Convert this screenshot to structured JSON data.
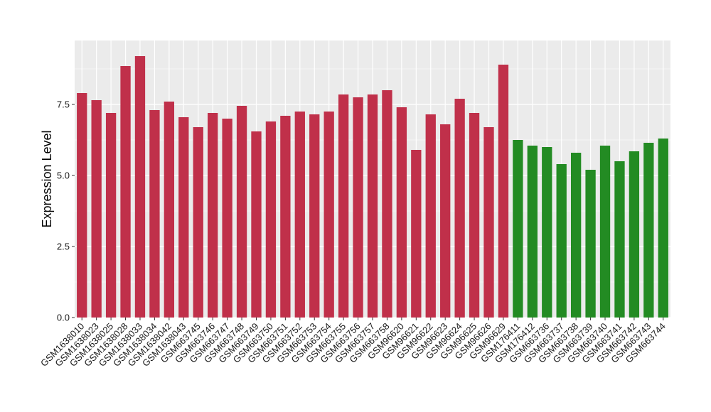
{
  "chart_data": {
    "type": "bar",
    "title": "",
    "xlabel": "",
    "ylabel": "Expression Level",
    "ylim": [
      0,
      9.75
    ],
    "yticks": [
      0.0,
      2.5,
      5.0,
      7.5
    ],
    "ytick_labels": [
      "0.0",
      "2.5",
      "5.0",
      "7.5"
    ],
    "grid": true,
    "colors": {
      "group1": "#c0304a",
      "group2": "#238b23",
      "panel": "#ebebeb",
      "grid": "#ffffff"
    },
    "categories": [
      "GSM1638010",
      "GSM1638023",
      "GSM1638025",
      "GSM1638028",
      "GSM1638033",
      "GSM1638034",
      "GSM1638042",
      "GSM1638043",
      "GSM663745",
      "GSM663746",
      "GSM663747",
      "GSM663748",
      "GSM663749",
      "GSM663750",
      "GSM663751",
      "GSM663752",
      "GSM663753",
      "GSM663754",
      "GSM663755",
      "GSM663756",
      "GSM663757",
      "GSM663758",
      "GSM96620",
      "GSM96621",
      "GSM96622",
      "GSM96623",
      "GSM96624",
      "GSM96625",
      "GSM96626",
      "GSM96629",
      "GSM176411",
      "GSM176412",
      "GSM663736",
      "GSM663737",
      "GSM663738",
      "GSM663739",
      "GSM663740",
      "GSM663741",
      "GSM663742",
      "GSM663743",
      "GSM663744"
    ],
    "values": [
      7.9,
      7.65,
      7.2,
      8.85,
      9.2,
      7.3,
      7.6,
      7.05,
      6.7,
      7.2,
      7.0,
      7.45,
      6.55,
      6.9,
      7.1,
      7.25,
      7.15,
      7.25,
      7.85,
      7.75,
      7.85,
      8.0,
      7.4,
      5.9,
      7.15,
      6.8,
      7.7,
      7.2,
      6.7,
      8.9,
      6.25,
      6.05,
      6.0,
      5.4,
      5.8,
      5.2,
      6.05,
      5.5,
      5.85,
      6.15,
      6.3
    ],
    "groups": [
      1,
      1,
      1,
      1,
      1,
      1,
      1,
      1,
      1,
      1,
      1,
      1,
      1,
      1,
      1,
      1,
      1,
      1,
      1,
      1,
      1,
      1,
      1,
      1,
      1,
      1,
      1,
      1,
      1,
      1,
      2,
      2,
      2,
      2,
      2,
      2,
      2,
      2,
      2,
      2,
      2
    ]
  }
}
